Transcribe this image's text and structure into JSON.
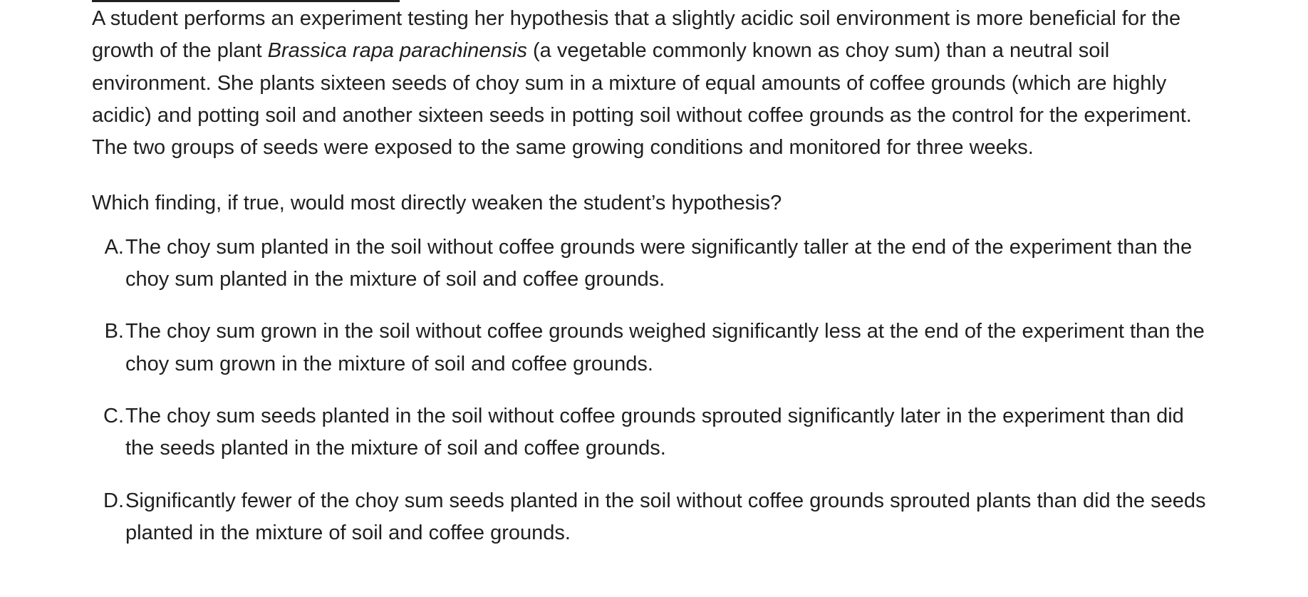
{
  "passage": {
    "before_italic": "A student performs an experiment testing her hypothesis that a slightly acidic soil environment is more beneficial for the growth of the plant ",
    "italic": "Brassica rapa parachinensis",
    "after_italic": " (a vegetable commonly known as choy sum) than a neutral soil environment. She plants sixteen seeds of choy sum in a mixture of equal amounts of coffee grounds (which are highly acidic) and potting soil and another sixteen seeds in potting soil without coffee grounds as the control for the experiment. The two groups of seeds were exposed to the same growing conditions and monitored for three weeks."
  },
  "question": "Which finding, if true, would most directly weaken the student’s hypothesis?",
  "choices": [
    {
      "letter": "A.",
      "text": "The choy sum planted in the soil without coffee grounds were significantly taller at the end of the experiment than the choy sum planted in the mixture of soil and coffee grounds."
    },
    {
      "letter": "B.",
      "text": "The choy sum grown in the soil without coffee grounds weighed significantly less at the end of the experiment than the choy sum grown in the mixture of soil and coffee grounds."
    },
    {
      "letter": "C.",
      "text": "The choy sum seeds planted in the soil without coffee grounds sprouted significantly later in the experiment than did the seeds planted in the mixture of soil and coffee grounds."
    },
    {
      "letter": "D.",
      "text": "Significantly fewer of the choy sum seeds planted in the soil without coffee grounds sprouted plants than did the seeds planted in the mixture of soil and coffee grounds."
    }
  ]
}
